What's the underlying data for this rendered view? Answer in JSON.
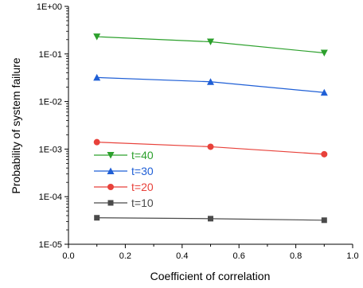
{
  "chart_data": {
    "type": "line",
    "title": "",
    "xlabel": "Coefficient of correlation",
    "ylabel": "Probability of system failure",
    "xlim": [
      0.0,
      1.0
    ],
    "ylim": [
      1e-05,
      1
    ],
    "yscale": "log",
    "x_ticks": [
      "0.0",
      "0.2",
      "0.4",
      "0.6",
      "0.8",
      "1.0"
    ],
    "y_ticks": [
      "1E-05",
      "1E-04",
      "1E-03",
      "1E-02",
      "1E-01",
      "1E+00"
    ],
    "grid": false,
    "legend_position": "lower-left",
    "x": [
      0.1,
      0.5,
      0.9
    ],
    "series": [
      {
        "name": "t=40",
        "values": [
          0.23,
          0.18,
          0.105
        ],
        "color": "#2ca02c",
        "marker": "triangle-down"
      },
      {
        "name": "t=30",
        "values": [
          0.032,
          0.026,
          0.0155
        ],
        "color": "#1f5fd6",
        "marker": "triangle-up"
      },
      {
        "name": "t=20",
        "values": [
          0.0014,
          0.00112,
          0.00078
        ],
        "color": "#e8413a",
        "marker": "circle"
      },
      {
        "name": "t=10",
        "values": [
          3.6e-05,
          3.45e-05,
          3.2e-05
        ],
        "color": "#4a4a4a",
        "marker": "square"
      }
    ]
  }
}
